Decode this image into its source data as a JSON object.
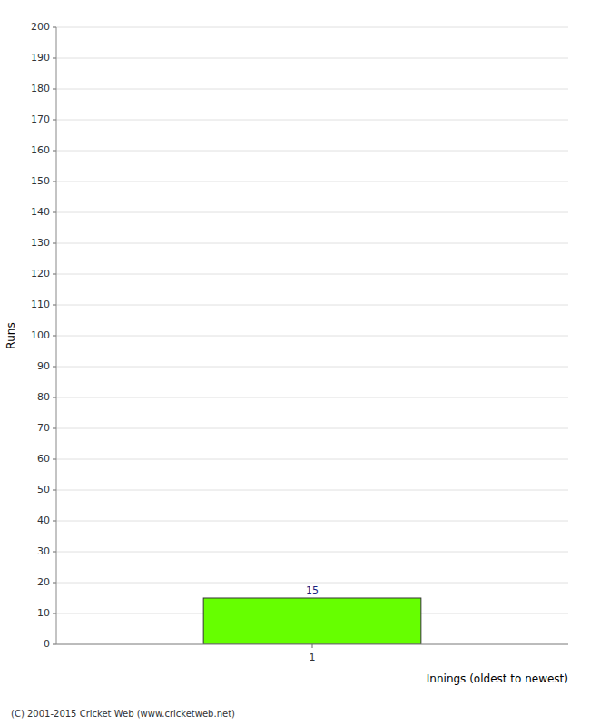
{
  "chart_data": {
    "type": "bar",
    "x_label": "Innings (oldest to newest)",
    "y_label": "Runs",
    "categories": [
      "1"
    ],
    "values": [
      15
    ],
    "color": "#66ff00",
    "ylim": [
      0,
      200
    ],
    "yticks": [
      0,
      10,
      20,
      30,
      40,
      50,
      60,
      70,
      80,
      90,
      100,
      110,
      120,
      130,
      140,
      150,
      160,
      170,
      180,
      190,
      200
    ],
    "grid": true,
    "data_labels": true,
    "annotations": [
      "(C) 2001-2015 Cricket Web (www.cricketweb.net)"
    ]
  }
}
